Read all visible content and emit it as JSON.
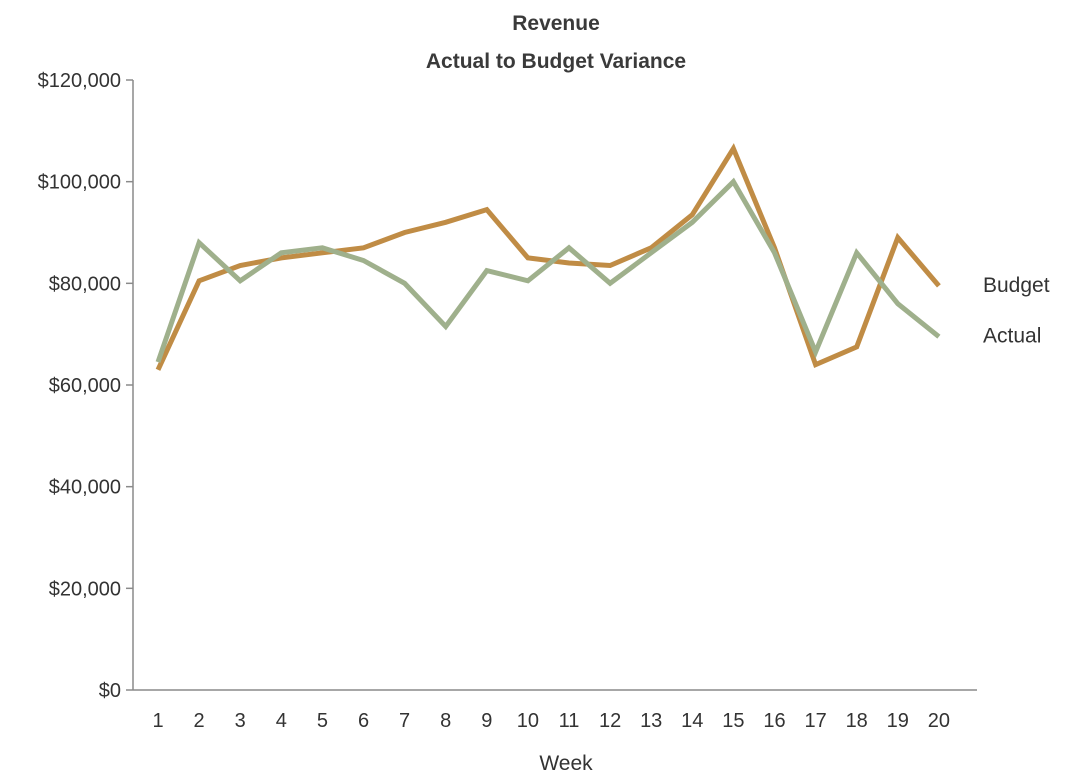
{
  "chart_data": {
    "type": "line",
    "title": "Revenue",
    "subtitle": "Actual to Budget Variance",
    "xlabel": "Week",
    "ylabel": "",
    "x": [
      1,
      2,
      3,
      4,
      5,
      6,
      7,
      8,
      9,
      10,
      11,
      12,
      13,
      14,
      15,
      16,
      17,
      18,
      19,
      20
    ],
    "x_tick_labels": [
      "1",
      "2",
      "3",
      "4",
      "5",
      "6",
      "7",
      "8",
      "9",
      "10",
      "11",
      "12",
      "13",
      "14",
      "15",
      "16",
      "17",
      "18",
      "19",
      "20"
    ],
    "ylim": [
      0,
      120000
    ],
    "y_ticks": [
      0,
      20000,
      40000,
      60000,
      80000,
      100000,
      120000
    ],
    "y_tick_labels": [
      "$0",
      "$20,000",
      "$40,000",
      "$60,000",
      "$80,000",
      "$100,000",
      "$120,000"
    ],
    "grid": false,
    "legend": "end-of-line labels",
    "series": [
      {
        "name": "Budget",
        "color": "#c08c45",
        "values": [
          63000,
          80500,
          83500,
          85000,
          86000,
          87000,
          90000,
          92000,
          94500,
          85000,
          84000,
          83500,
          87000,
          93500,
          106500,
          87000,
          64000,
          67500,
          89000,
          79500
        ]
      },
      {
        "name": "Actual",
        "color": "#9fb08c",
        "values": [
          64500,
          88000,
          80500,
          86000,
          87000,
          84500,
          80000,
          71500,
          82500,
          80500,
          87000,
          80000,
          86000,
          92000,
          100000,
          86000,
          66500,
          86000,
          76000,
          69500
        ]
      }
    ]
  }
}
